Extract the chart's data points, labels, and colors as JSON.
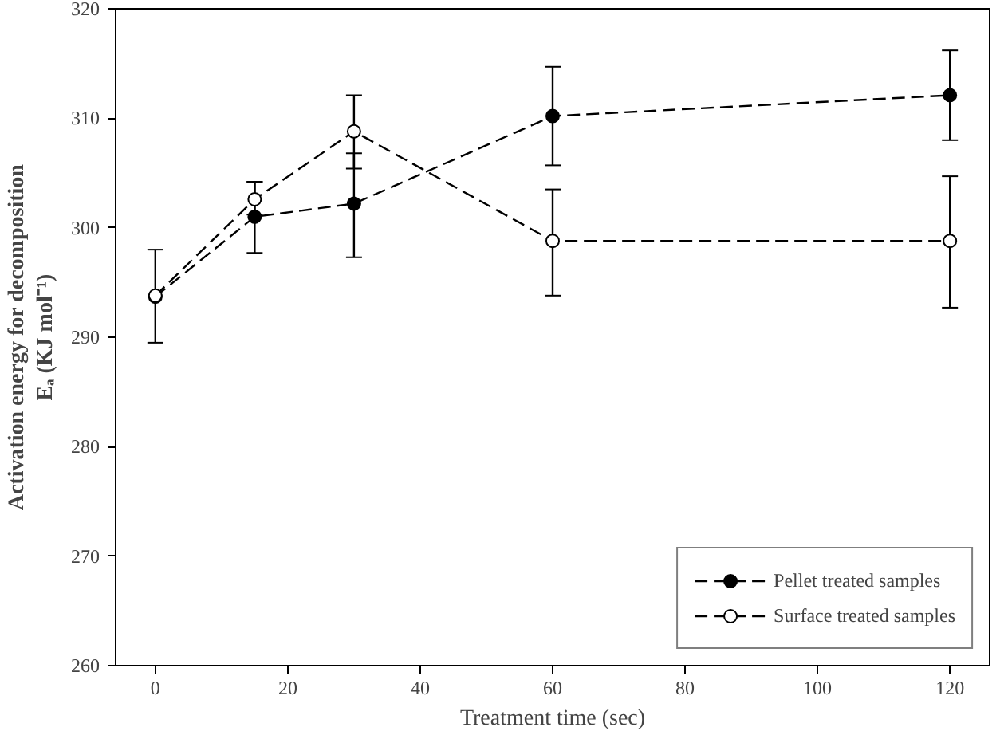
{
  "chart_data": {
    "type": "line",
    "xlabel": "Treatment time (sec)",
    "ylabel": "Activation energy for decomposition\nEₐ (KJ mol⁻¹)",
    "x": [
      0,
      15,
      30,
      60,
      120
    ],
    "series": [
      {
        "name": "Pellet treated samples",
        "color": "#000000",
        "values": [
          293.7,
          301.0,
          302.2,
          310.2,
          312.1
        ],
        "errors": [
          [
            289.5,
            298.0
          ],
          [
            297.7,
            304.2
          ],
          [
            297.3,
            306.8
          ],
          [
            305.7,
            314.7
          ],
          [
            308.0,
            316.2
          ]
        ]
      },
      {
        "name": "Surface treated samples",
        "color": "#000000",
        "marker": "circle_open",
        "values": [
          293.8,
          302.6,
          308.8,
          298.8,
          298.8
        ],
        "errors": [
          null,
          [
            301.2,
            304.2
          ],
          [
            305.4,
            312.1
          ],
          [
            293.8,
            303.5
          ],
          [
            292.7,
            304.7
          ]
        ]
      }
    ],
    "xlim": [
      -6,
      126
    ],
    "xticks": [
      0,
      20,
      40,
      60,
      80,
      100,
      120
    ],
    "ylim": [
      260,
      320
    ],
    "yticks": [
      260,
      270,
      280,
      290,
      300,
      310,
      320
    ],
    "grid": false,
    "legend": "bottom right",
    "marker": "circle",
    "line_style": "dashed"
  }
}
